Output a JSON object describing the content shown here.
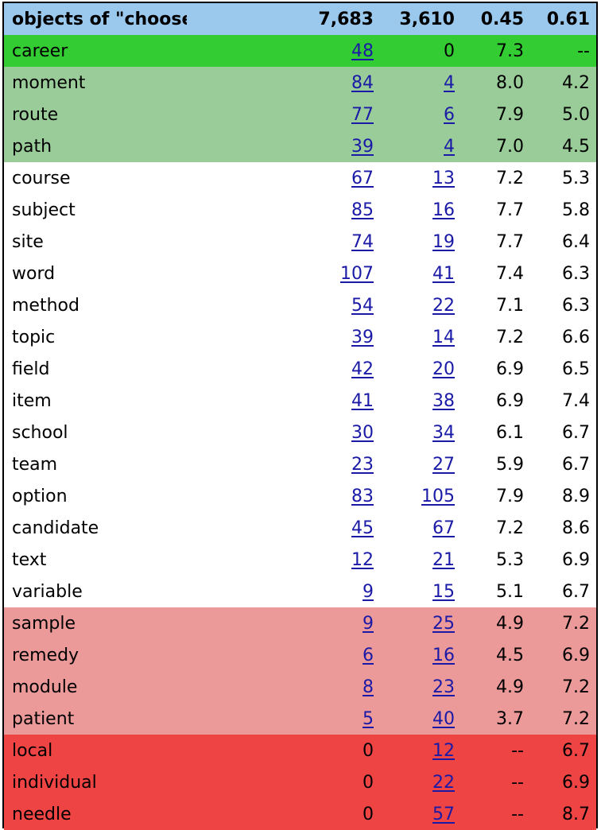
{
  "colors": {
    "header_bg": "#9bc8ed",
    "top_band": "#33cc33",
    "high_band": "#99cc99",
    "mid_band": "#ffffff",
    "low_band": "#eb9999",
    "bottom_band": "#ee4444",
    "link": "#1a1aa6"
  },
  "header": {
    "title": "objects of \"choose/select\"",
    "col1": "7,683",
    "col2": "3,610",
    "col3": "0.45",
    "col4": "0.61"
  },
  "rows": [
    {
      "word": "career",
      "c1": "48",
      "c2": "0",
      "c3": "7.3",
      "c4": "--",
      "band": "top",
      "c1_link": true,
      "c2_link": false
    },
    {
      "word": "moment",
      "c1": "84",
      "c2": "4",
      "c3": "8.0",
      "c4": "4.2",
      "band": "hi",
      "c1_link": true,
      "c2_link": true
    },
    {
      "word": "route",
      "c1": "77",
      "c2": "6",
      "c3": "7.9",
      "c4": "5.0",
      "band": "hi",
      "c1_link": true,
      "c2_link": true
    },
    {
      "word": "path",
      "c1": "39",
      "c2": "4",
      "c3": "7.0",
      "c4": "4.5",
      "band": "hi",
      "c1_link": true,
      "c2_link": true
    },
    {
      "word": "course",
      "c1": "67",
      "c2": "13",
      "c3": "7.2",
      "c4": "5.3",
      "band": "mid",
      "c1_link": true,
      "c2_link": true
    },
    {
      "word": "subject",
      "c1": "85",
      "c2": "16",
      "c3": "7.7",
      "c4": "5.8",
      "band": "mid",
      "c1_link": true,
      "c2_link": true
    },
    {
      "word": "site",
      "c1": "74",
      "c2": "19",
      "c3": "7.7",
      "c4": "6.4",
      "band": "mid",
      "c1_link": true,
      "c2_link": true
    },
    {
      "word": "word",
      "c1": "107",
      "c2": "41",
      "c3": "7.4",
      "c4": "6.3",
      "band": "mid",
      "c1_link": true,
      "c2_link": true
    },
    {
      "word": "method",
      "c1": "54",
      "c2": "22",
      "c3": "7.1",
      "c4": "6.3",
      "band": "mid",
      "c1_link": true,
      "c2_link": true
    },
    {
      "word": "topic",
      "c1": "39",
      "c2": "14",
      "c3": "7.2",
      "c4": "6.6",
      "band": "mid",
      "c1_link": true,
      "c2_link": true
    },
    {
      "word": "field",
      "c1": "42",
      "c2": "20",
      "c3": "6.9",
      "c4": "6.5",
      "band": "mid",
      "c1_link": true,
      "c2_link": true
    },
    {
      "word": "item",
      "c1": "41",
      "c2": "38",
      "c3": "6.9",
      "c4": "7.4",
      "band": "mid",
      "c1_link": true,
      "c2_link": true
    },
    {
      "word": "school",
      "c1": "30",
      "c2": "34",
      "c3": "6.1",
      "c4": "6.7",
      "band": "mid",
      "c1_link": true,
      "c2_link": true
    },
    {
      "word": "team",
      "c1": "23",
      "c2": "27",
      "c3": "5.9",
      "c4": "6.7",
      "band": "mid",
      "c1_link": true,
      "c2_link": true
    },
    {
      "word": "option",
      "c1": "83",
      "c2": "105",
      "c3": "7.9",
      "c4": "8.9",
      "band": "mid",
      "c1_link": true,
      "c2_link": true
    },
    {
      "word": "candidate",
      "c1": "45",
      "c2": "67",
      "c3": "7.2",
      "c4": "8.6",
      "band": "mid",
      "c1_link": true,
      "c2_link": true
    },
    {
      "word": "text",
      "c1": "12",
      "c2": "21",
      "c3": "5.3",
      "c4": "6.9",
      "band": "mid",
      "c1_link": true,
      "c2_link": true
    },
    {
      "word": "variable",
      "c1": "9",
      "c2": "15",
      "c3": "5.1",
      "c4": "6.7",
      "band": "mid",
      "c1_link": true,
      "c2_link": true
    },
    {
      "word": "sample",
      "c1": "9",
      "c2": "25",
      "c3": "4.9",
      "c4": "7.2",
      "band": "lo",
      "c1_link": true,
      "c2_link": true
    },
    {
      "word": "remedy",
      "c1": "6",
      "c2": "16",
      "c3": "4.5",
      "c4": "6.9",
      "band": "lo",
      "c1_link": true,
      "c2_link": true
    },
    {
      "word": "module",
      "c1": "8",
      "c2": "23",
      "c3": "4.9",
      "c4": "7.2",
      "band": "lo",
      "c1_link": true,
      "c2_link": true
    },
    {
      "word": "patient",
      "c1": "5",
      "c2": "40",
      "c3": "3.7",
      "c4": "7.2",
      "band": "lo",
      "c1_link": true,
      "c2_link": true
    },
    {
      "word": "local",
      "c1": "0",
      "c2": "12",
      "c3": "--",
      "c4": "6.7",
      "band": "bottom",
      "c1_link": false,
      "c2_link": true
    },
    {
      "word": "individual",
      "c1": "0",
      "c2": "22",
      "c3": "--",
      "c4": "6.9",
      "band": "bottom",
      "c1_link": false,
      "c2_link": true
    },
    {
      "word": "needle",
      "c1": "0",
      "c2": "57",
      "c3": "--",
      "c4": "8.7",
      "band": "bottom",
      "c1_link": false,
      "c2_link": true
    }
  ]
}
